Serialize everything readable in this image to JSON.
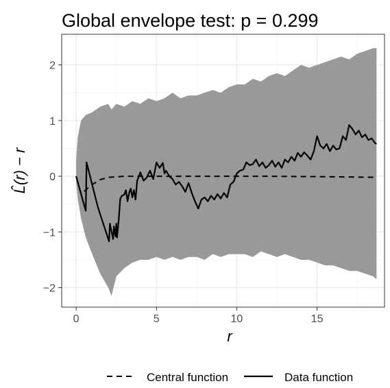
{
  "chart_data": {
    "type": "line",
    "title": "Global envelope test: p = 0.299",
    "xlabel": "r",
    "ylabel": "L̂(r) − r",
    "xlim": [
      -0.9,
      19.2
    ],
    "ylim": [
      -2.35,
      2.55
    ],
    "x_ticks": [
      0,
      5,
      10,
      15
    ],
    "y_ticks": [
      -2,
      -1,
      0,
      1,
      2
    ],
    "x_tick_labels": [
      "0",
      "5",
      "10",
      "15"
    ],
    "y_tick_labels": [
      "−2",
      "−1",
      "0",
      "1",
      "2"
    ],
    "grid": true,
    "legend_position": "bottom",
    "envelope": {
      "color": "#999999",
      "x": [
        0,
        0.1,
        0.3,
        0.6,
        1.0,
        1.5,
        2.0,
        2.2,
        2.5,
        3.0,
        3.5,
        4.0,
        4.5,
        5.0,
        5.5,
        6.0,
        6.5,
        7.0,
        7.5,
        8.0,
        8.5,
        9.0,
        9.5,
        10.0,
        10.5,
        11.0,
        11.5,
        12.0,
        12.5,
        13.0,
        13.5,
        14.0,
        14.5,
        15.0,
        15.5,
        16.0,
        16.5,
        17.0,
        17.5,
        18.0,
        18.5,
        18.7
      ],
      "upper": [
        0.3,
        0.7,
        1.0,
        1.1,
        1.15,
        1.25,
        1.3,
        1.2,
        1.3,
        1.25,
        1.35,
        1.3,
        1.4,
        1.35,
        1.4,
        1.5,
        1.4,
        1.45,
        1.45,
        1.5,
        1.55,
        1.5,
        1.6,
        1.65,
        1.65,
        1.75,
        1.7,
        1.8,
        1.85,
        1.8,
        1.9,
        2.0,
        1.95,
        2.0,
        2.05,
        2.1,
        2.15,
        2.1,
        2.2,
        2.25,
        2.3,
        2.3
      ],
      "lower": [
        -0.1,
        -0.4,
        -0.75,
        -1.1,
        -1.4,
        -1.75,
        -2.0,
        -2.15,
        -1.8,
        -1.65,
        -1.55,
        -1.5,
        -1.5,
        -1.45,
        -1.5,
        -1.45,
        -1.5,
        -1.45,
        -1.45,
        -1.5,
        -1.4,
        -1.45,
        -1.4,
        -1.4,
        -1.4,
        -1.45,
        -1.35,
        -1.4,
        -1.45,
        -1.4,
        -1.45,
        -1.5,
        -1.5,
        -1.55,
        -1.6,
        -1.6,
        -1.65,
        -1.7,
        -1.7,
        -1.75,
        -1.8,
        -1.85
      ]
    },
    "series": [
      {
        "name": "Central function",
        "style": "dashed",
        "color": "#000000",
        "x": [
          0.5,
          0.7,
          1.0,
          1.5,
          2.0,
          3.0,
          5.0,
          8.0,
          12.0,
          16.0,
          18.7
        ],
        "y": [
          -0.27,
          -0.22,
          -0.15,
          -0.06,
          -0.02,
          0.0,
          0.0,
          0.0,
          0.0,
          -0.01,
          -0.02
        ]
      },
      {
        "name": "Data function",
        "style": "solid",
        "color": "#000000",
        "x": [
          0.0,
          0.6,
          0.65,
          1.35,
          2.05,
          2.1,
          2.3,
          2.35,
          2.45,
          2.5,
          2.55,
          2.65,
          2.75,
          2.85,
          3.0,
          3.1,
          3.2,
          3.3,
          3.4,
          3.5,
          3.6,
          3.7,
          3.8,
          4.0,
          4.2,
          4.4,
          4.6,
          4.8,
          5.0,
          5.2,
          5.4,
          5.5,
          5.6,
          5.8,
          6.0,
          6.2,
          6.4,
          6.6,
          6.8,
          7.0,
          7.2,
          7.4,
          7.6,
          7.8,
          8.0,
          8.2,
          8.4,
          8.6,
          8.8,
          9.0,
          9.2,
          9.4,
          9.6,
          9.8,
          10.0,
          10.2,
          10.4,
          10.6,
          10.8,
          11.0,
          11.2,
          11.4,
          11.6,
          11.8,
          12.0,
          12.2,
          12.4,
          12.6,
          12.8,
          13.0,
          13.2,
          13.4,
          13.6,
          13.8,
          14.0,
          14.2,
          14.4,
          14.6,
          14.8,
          15.0,
          15.2,
          15.4,
          15.6,
          15.8,
          16.0,
          16.2,
          16.4,
          16.6,
          16.8,
          17.0,
          17.2,
          17.4,
          17.6,
          17.8,
          18.0,
          18.2,
          18.4,
          18.6,
          18.7
        ],
        "y": [
          0.0,
          -0.62,
          0.25,
          -0.55,
          -1.17,
          -0.85,
          -1.13,
          -0.9,
          -1.08,
          -0.85,
          -1.1,
          -0.78,
          -0.4,
          -0.35,
          -0.33,
          -0.25,
          -0.45,
          -0.3,
          -0.22,
          -0.38,
          -0.25,
          -0.42,
          -0.08,
          0.07,
          -0.08,
          -0.02,
          0.1,
          -0.05,
          0.25,
          0.15,
          0.24,
          0.05,
          0.1,
          0.0,
          -0.05,
          -0.15,
          -0.1,
          -0.18,
          -0.28,
          -0.12,
          -0.3,
          -0.45,
          -0.58,
          -0.42,
          -0.38,
          -0.45,
          -0.35,
          -0.42,
          -0.32,
          -0.4,
          -0.3,
          -0.38,
          -0.15,
          -0.1,
          0.05,
          0.1,
          0.12,
          0.25,
          0.2,
          0.22,
          0.3,
          0.18,
          0.25,
          0.15,
          0.2,
          0.28,
          0.17,
          0.25,
          0.15,
          0.3,
          0.25,
          0.35,
          0.28,
          0.42,
          0.35,
          0.43,
          0.37,
          0.3,
          0.45,
          0.72,
          0.55,
          0.5,
          0.58,
          0.45,
          0.55,
          0.48,
          0.5,
          0.72,
          0.65,
          0.92,
          0.85,
          0.75,
          0.82,
          0.7,
          0.75,
          0.65,
          0.68,
          0.6,
          0.58
        ]
      }
    ]
  }
}
